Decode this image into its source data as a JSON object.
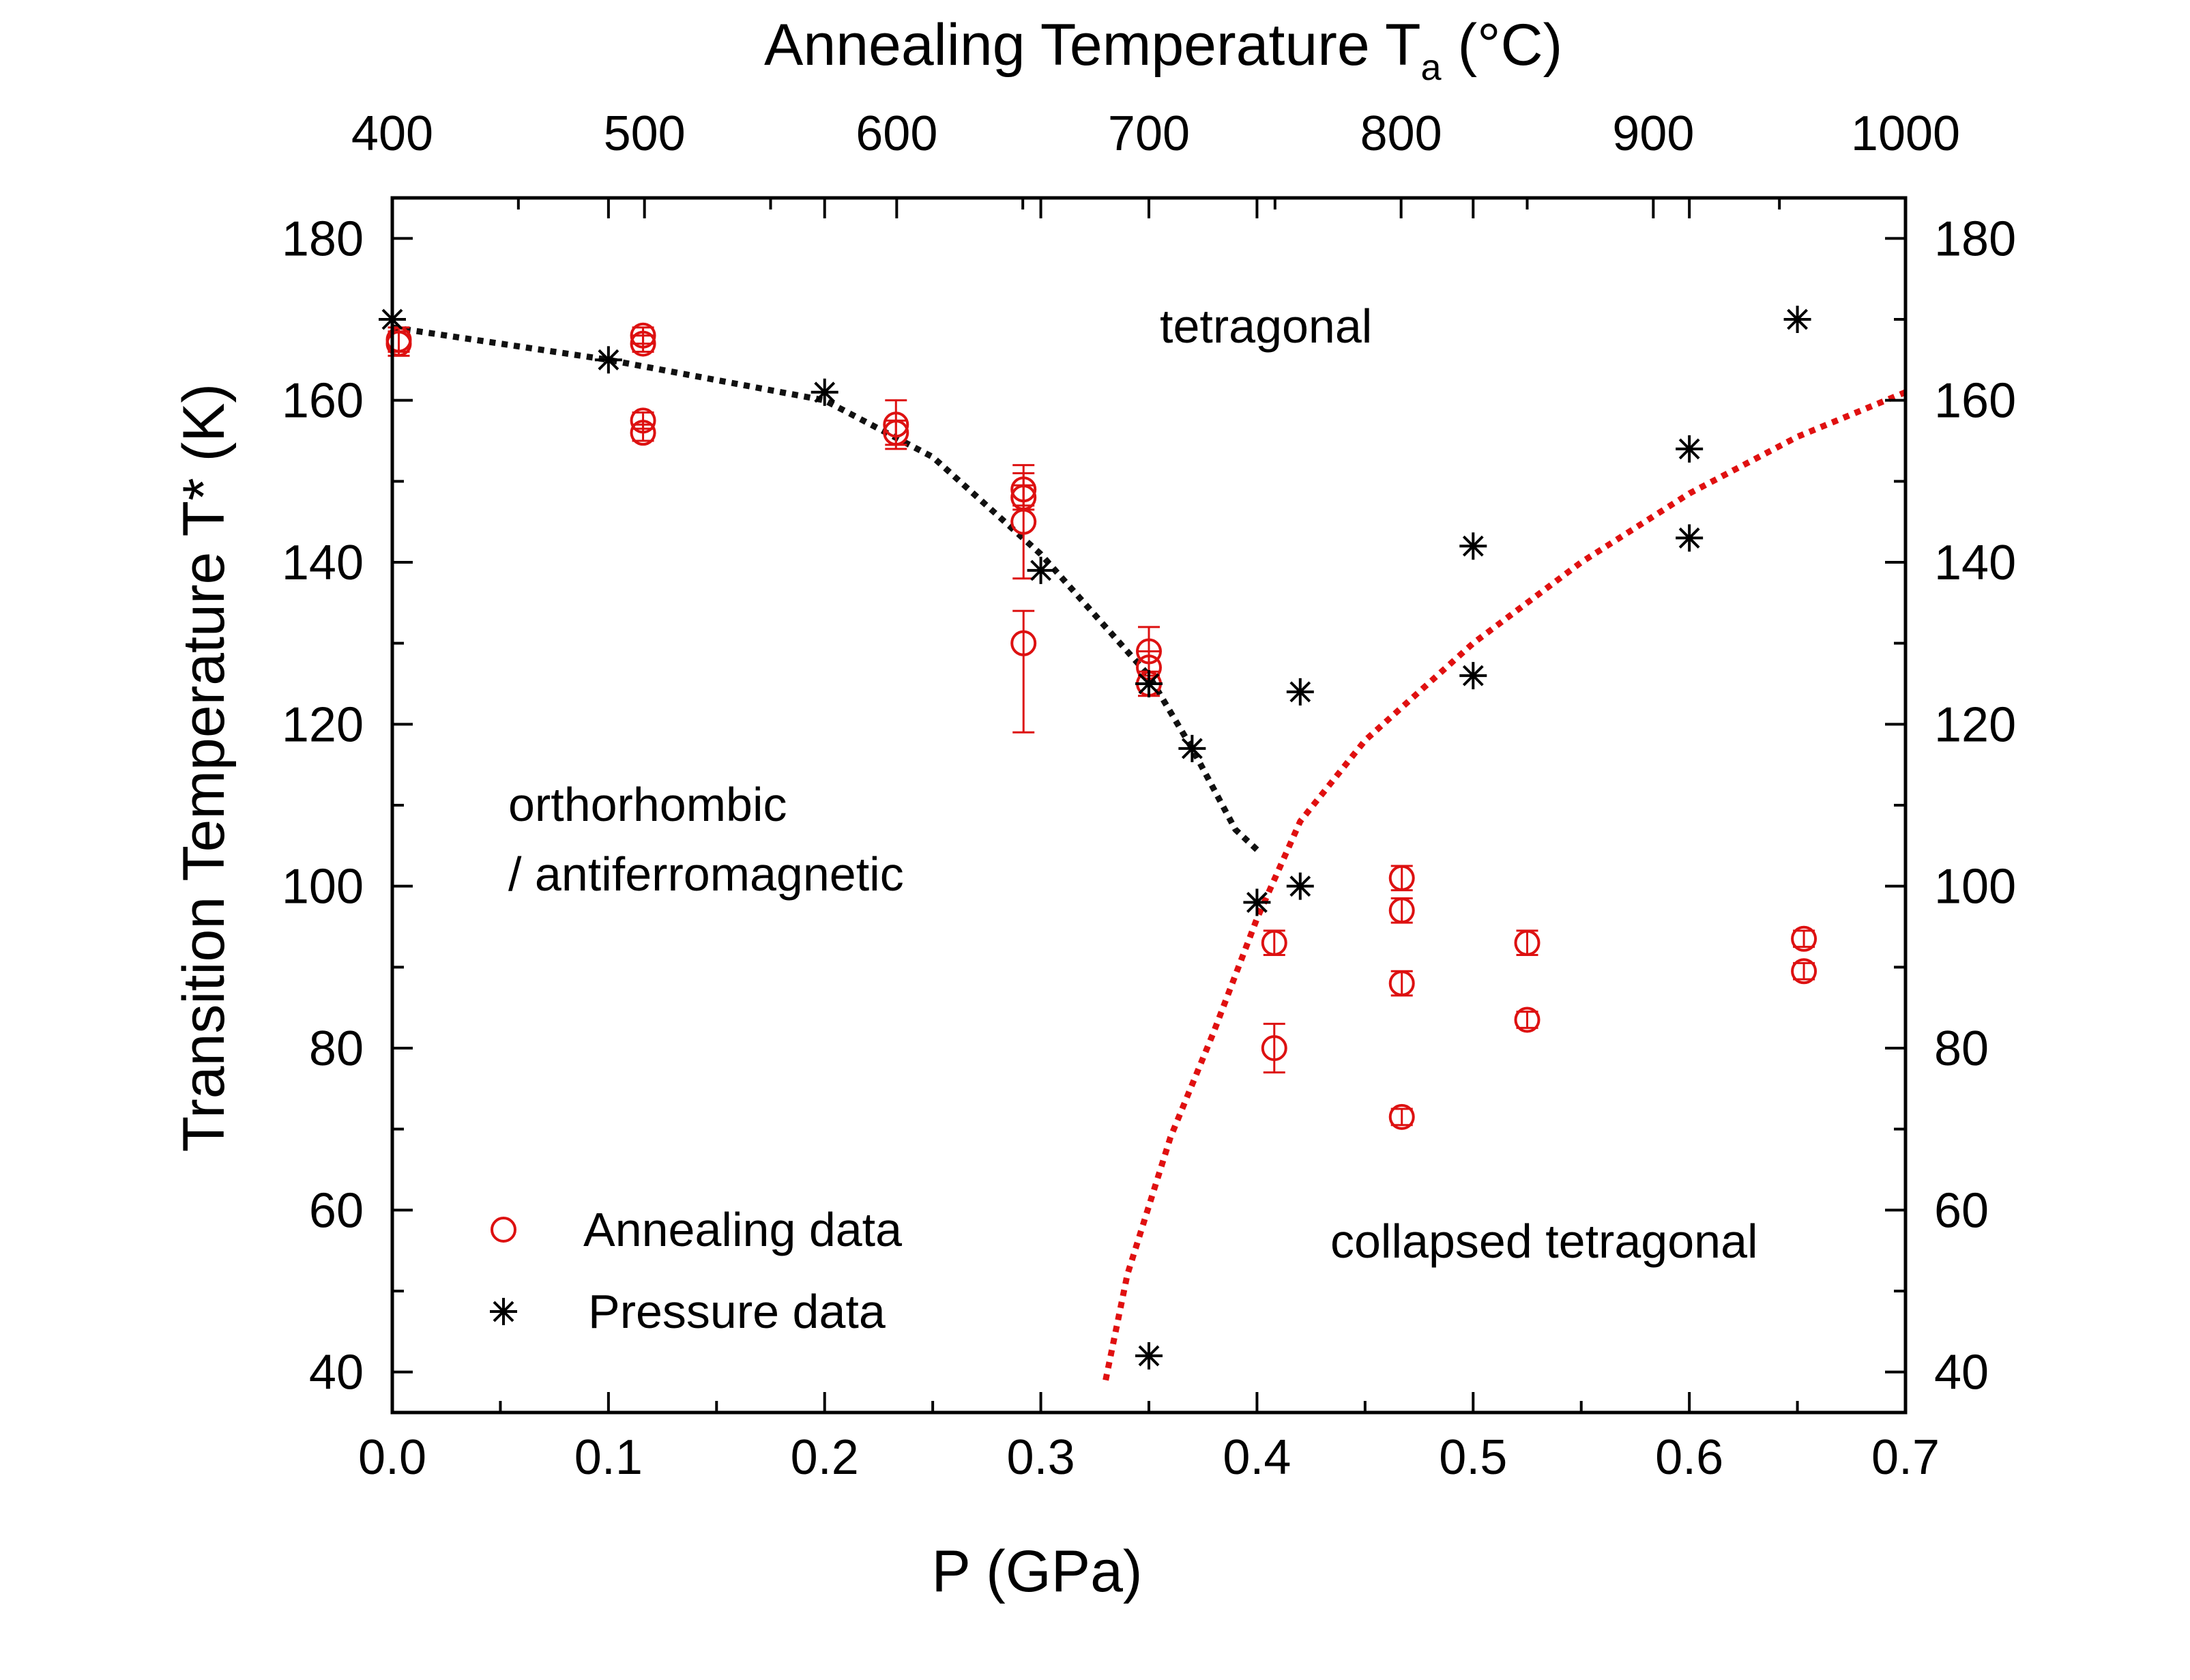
{
  "chart_data": {
    "type": "scatter",
    "title": "",
    "xlabel": "P (GPa)",
    "ylabel": "Transition Temperature T* (K)",
    "top_xlabel": {
      "main": "Annealing Temperature T",
      "sub": "a",
      "suffix": " (°C)"
    },
    "xlim": [
      0.0,
      0.7
    ],
    "ylim": [
      35,
      185
    ],
    "top_xlim": [
      400,
      1000
    ],
    "x_ticks": [
      "0.0",
      "0.1",
      "0.2",
      "0.3",
      "0.4",
      "0.5",
      "0.6",
      "0.7"
    ],
    "x_tick_values": [
      0.0,
      0.1,
      0.2,
      0.3,
      0.4,
      0.5,
      0.6,
      0.7
    ],
    "y_ticks": [
      "40",
      "60",
      "80",
      "100",
      "120",
      "140",
      "160",
      "180"
    ],
    "y_tick_values": [
      40,
      60,
      80,
      100,
      120,
      140,
      160,
      180
    ],
    "top_x_ticks": [
      "400",
      "500",
      "600",
      "700",
      "800",
      "900",
      "1000"
    ],
    "top_x_tick_values": [
      400,
      500,
      600,
      700,
      800,
      900,
      1000
    ],
    "region_labels": {
      "tetragonal": "tetragonal",
      "ortho_line1": "orthorhombic",
      "ortho_line2": "/ antiferromagnetic",
      "collapsed": "collapsed tetragonal"
    },
    "legend": {
      "position": "bottom-left",
      "entries": [
        {
          "name": "Annealing data",
          "marker": "circle",
          "color": "#dd1111"
        },
        {
          "name": "Pressure data",
          "marker": "asterisk",
          "color": "#000000"
        }
      ]
    },
    "series": [
      {
        "name": "Annealing data",
        "color": "#dd1111",
        "points": [
          {
            "x": 0.003,
            "y": 167.5,
            "err": 1.5
          },
          {
            "x": 0.003,
            "y": 167.0,
            "err": 1.5
          },
          {
            "x": 0.116,
            "y": 168.0,
            "err": 1.0
          },
          {
            "x": 0.116,
            "y": 167.0,
            "err": 1.0
          },
          {
            "x": 0.116,
            "y": 157.5,
            "err": 1.0
          },
          {
            "x": 0.116,
            "y": 156.0,
            "err": 1.0
          },
          {
            "x": 0.233,
            "y": 157.0,
            "err": 3.0
          },
          {
            "x": 0.233,
            "y": 156.0,
            "err": 1.5
          },
          {
            "x": 0.292,
            "y": 149.0,
            "err": 2.0
          },
          {
            "x": 0.292,
            "y": 148.0,
            "err": 1.5
          },
          {
            "x": 0.292,
            "y": 145.0,
            "err": 7.0
          },
          {
            "x": 0.292,
            "y": 130.0,
            "err": 4.0,
            "err_low": 11.0
          },
          {
            "x": 0.35,
            "y": 129.0,
            "err": 3.0
          },
          {
            "x": 0.35,
            "y": 127.0,
            "err": 2.0
          },
          {
            "x": 0.35,
            "y": 125.0,
            "err": 1.5
          },
          {
            "x": 0.408,
            "y": 93.0,
            "err": 1.5
          },
          {
            "x": 0.408,
            "y": 80.0,
            "err": 3.0
          },
          {
            "x": 0.467,
            "y": 101.0,
            "err": 1.5
          },
          {
            "x": 0.467,
            "y": 97.0,
            "err": 1.5
          },
          {
            "x": 0.467,
            "y": 88.0,
            "err": 1.5
          },
          {
            "x": 0.467,
            "y": 71.5,
            "err": 1.0
          },
          {
            "x": 0.525,
            "y": 93.0,
            "err": 1.5
          },
          {
            "x": 0.525,
            "y": 83.5,
            "err": 1.0
          },
          {
            "x": 0.653,
            "y": 93.5,
            "err": 1.0
          },
          {
            "x": 0.653,
            "y": 89.5,
            "err": 1.0
          }
        ]
      },
      {
        "name": "Pressure data",
        "color": "#000000",
        "points": [
          {
            "x": 0.0,
            "y": 170
          },
          {
            "x": 0.1,
            "y": 165
          },
          {
            "x": 0.2,
            "y": 161
          },
          {
            "x": 0.3,
            "y": 139
          },
          {
            "x": 0.35,
            "y": 125
          },
          {
            "x": 0.37,
            "y": 117
          },
          {
            "x": 0.4,
            "y": 98
          },
          {
            "x": 0.42,
            "y": 124
          },
          {
            "x": 0.42,
            "y": 100
          },
          {
            "x": 0.35,
            "y": 42
          },
          {
            "x": 0.5,
            "y": 142
          },
          {
            "x": 0.5,
            "y": 126
          },
          {
            "x": 0.6,
            "y": 154
          },
          {
            "x": 0.6,
            "y": 143
          },
          {
            "x": 0.65,
            "y": 170
          }
        ]
      }
    ],
    "guide_lines": [
      {
        "name": "orthorhombic-boundary",
        "color": "#111111",
        "style": "dotted",
        "points": [
          [
            0.0,
            169
          ],
          [
            0.1,
            165
          ],
          [
            0.2,
            160
          ],
          [
            0.25,
            153
          ],
          [
            0.3,
            141
          ],
          [
            0.35,
            126
          ],
          [
            0.37,
            117
          ],
          [
            0.39,
            107
          ],
          [
            0.4,
            104.5
          ]
        ]
      },
      {
        "name": "collapsed-tetragonal-boundary",
        "color": "#e01010",
        "style": "dotted",
        "points": [
          [
            0.33,
            39
          ],
          [
            0.34,
            52
          ],
          [
            0.36,
            69
          ],
          [
            0.38,
            82
          ],
          [
            0.4,
            96
          ],
          [
            0.42,
            108
          ],
          [
            0.45,
            118
          ],
          [
            0.5,
            130
          ],
          [
            0.55,
            140
          ],
          [
            0.6,
            148.5
          ],
          [
            0.65,
            155.5
          ],
          [
            0.7,
            161
          ]
        ]
      }
    ]
  }
}
